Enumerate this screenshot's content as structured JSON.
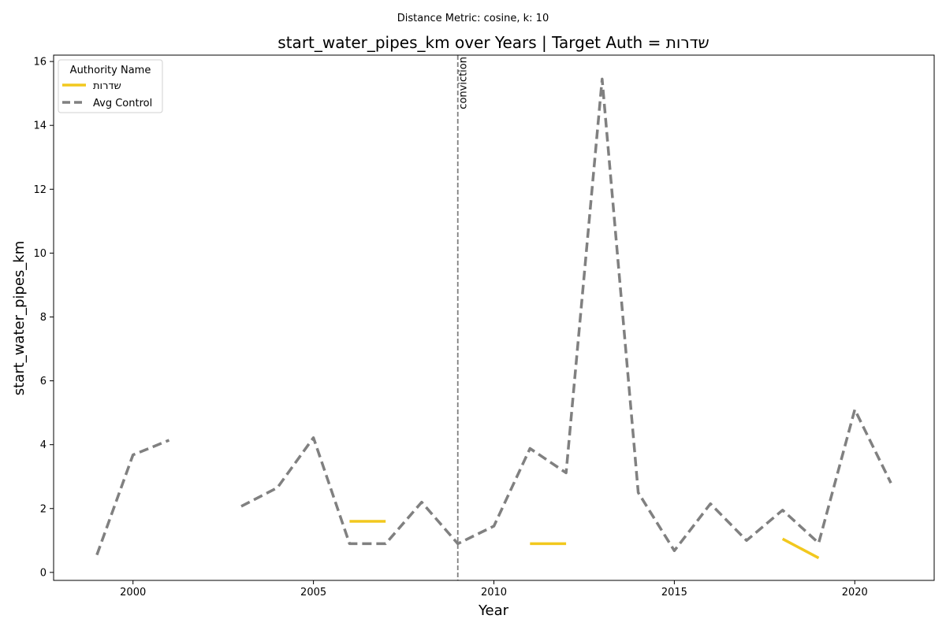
{
  "suptitle": "Distance Metric: cosine, k: 10",
  "chart_data": {
    "type": "line",
    "title": "start_water_pipes_km over Years | Target Auth = שדרות",
    "xlabel": "Year",
    "ylabel": "start_water_pipes_km",
    "xlim": [
      1997.8,
      2022.2
    ],
    "ylim": [
      -0.25,
      16.2
    ],
    "xticks": [
      2000,
      2005,
      2010,
      2015,
      2020
    ],
    "yticks": [
      0,
      2,
      4,
      6,
      8,
      10,
      12,
      14,
      16
    ],
    "grid": false,
    "legend": {
      "title": "Authority Name",
      "placement": "top-left"
    },
    "annotations": [
      {
        "type": "vline",
        "x": 2009,
        "label": "conviction",
        "color": "#808080"
      }
    ],
    "series": [
      {
        "name": "שדרות",
        "color": "#f2c81e",
        "style": "solid",
        "points": [
          [
            2006,
            1.6
          ],
          [
            2007,
            1.6
          ],
          [
            2011,
            0.9
          ],
          [
            2012,
            0.9
          ],
          [
            2018,
            1.05
          ],
          [
            2019,
            0.45
          ]
        ],
        "segments": [
          [
            0,
            1
          ],
          [
            2,
            3
          ],
          [
            4,
            5
          ]
        ]
      },
      {
        "name": "Avg Control",
        "color": "#808080",
        "style": "dashed",
        "points": [
          [
            1999,
            0.55
          ],
          [
            2000,
            3.68
          ],
          [
            2001,
            4.14
          ],
          [
            2003,
            2.07
          ],
          [
            2004,
            2.65
          ],
          [
            2005,
            4.22
          ],
          [
            2006,
            0.9
          ],
          [
            2007,
            0.9
          ],
          [
            2008,
            2.2
          ],
          [
            2009,
            0.9
          ],
          [
            2010,
            1.45
          ],
          [
            2011,
            3.88
          ],
          [
            2012,
            3.12
          ],
          [
            2013,
            15.45
          ],
          [
            2014,
            2.5
          ],
          [
            2015,
            0.68
          ],
          [
            2016,
            2.15
          ],
          [
            2017,
            1.0
          ],
          [
            2018,
            1.95
          ],
          [
            2019,
            0.92
          ],
          [
            2020,
            5.1
          ],
          [
            2021,
            2.8
          ]
        ],
        "segments": [
          [
            0,
            2
          ],
          [
            3,
            21
          ]
        ]
      }
    ]
  }
}
